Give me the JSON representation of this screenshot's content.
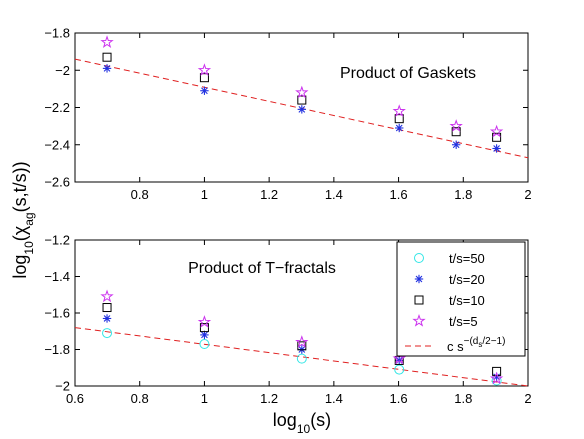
{
  "figure": {
    "ylabel_main": "log",
    "ylabel_sub": "10",
    "ylabel_rest": "(χ",
    "ylabel_chisub": "ag",
    "ylabel_end": "(s,t/s))",
    "xlabel_main": "log",
    "xlabel_sub": "10",
    "xlabel_end": "(s)"
  },
  "colors": {
    "t50": "#33e6e6",
    "t20": "#2030e0",
    "t10": "#000000",
    "t5": "#cc33ee",
    "fit": "#e02020"
  },
  "chart_data": [
    {
      "type": "scatter",
      "title": "Product of Gaskets",
      "xlim": [
        0.6,
        2
      ],
      "ylim": [
        -2.6,
        -1.8
      ],
      "xticks": [
        "",
        "0.8",
        "1",
        "1.2",
        "1.4",
        "1.6",
        "1.8",
        "2"
      ],
      "xtick_values": [
        0.6,
        0.8,
        1.0,
        1.2,
        1.4,
        1.6,
        1.8,
        2.0
      ],
      "yticks": [
        "−2.6",
        "−2.4",
        "−2.2",
        "−2",
        "−1.8"
      ],
      "ytick_values": [
        -2.6,
        -2.4,
        -2.2,
        -2.0,
        -1.8
      ],
      "series": [
        {
          "key": "t20",
          "marker": "star",
          "x": [
            0.699,
            1.0,
            1.301,
            1.602,
            1.778,
            1.903
          ],
          "y": [
            -1.99,
            -2.11,
            -2.21,
            -2.31,
            -2.4,
            -2.42
          ]
        },
        {
          "key": "t10",
          "marker": "square",
          "x": [
            0.699,
            1.0,
            1.301,
            1.602,
            1.778,
            1.903
          ],
          "y": [
            -1.93,
            -2.04,
            -2.16,
            -2.26,
            -2.33,
            -2.36
          ]
        },
        {
          "key": "t5",
          "marker": "pentagram",
          "x": [
            0.699,
            1.0,
            1.301,
            1.602,
            1.778,
            1.903
          ],
          "y": [
            -1.85,
            -2.0,
            -2.12,
            -2.22,
            -2.3,
            -2.33
          ]
        }
      ],
      "fit": {
        "x": [
          0.6,
          2.0
        ],
        "y": [
          -1.94,
          -2.47
        ]
      }
    },
    {
      "type": "scatter",
      "title": "Product of T−fractals",
      "xlim": [
        0.6,
        2
      ],
      "ylim": [
        -2,
        -1.2
      ],
      "xticks": [
        "0.6",
        "0.8",
        "1",
        "1.2",
        "1.4",
        "1.6",
        "1.8",
        "2"
      ],
      "xtick_values": [
        0.6,
        0.8,
        1.0,
        1.2,
        1.4,
        1.6,
        1.8,
        2.0
      ],
      "yticks": [
        "−2",
        "−1.8",
        "−1.6",
        "−1.4",
        "−1.2"
      ],
      "ytick_values": [
        -2.0,
        -1.8,
        -1.6,
        -1.4,
        -1.2
      ],
      "series": [
        {
          "key": "t50",
          "marker": "circle",
          "name": "t/s=50",
          "x": [
            0.699,
            1.0,
            1.301,
            1.602,
            1.903
          ],
          "y": [
            -1.71,
            -1.77,
            -1.85,
            -1.91,
            -1.97
          ]
        },
        {
          "key": "t20",
          "marker": "star",
          "name": "t/s=20",
          "x": [
            0.699,
            1.0,
            1.301,
            1.602,
            1.903
          ],
          "y": [
            -1.63,
            -1.72,
            -1.8,
            -1.86,
            -1.95
          ]
        },
        {
          "key": "t10",
          "marker": "square",
          "name": "t/s=10",
          "x": [
            0.699,
            1.0,
            1.301,
            1.602,
            1.903
          ],
          "y": [
            -1.57,
            -1.68,
            -1.78,
            -1.86,
            -1.92
          ]
        },
        {
          "key": "t5",
          "marker": "pentagram",
          "name": "t/s=5",
          "x": [
            0.699,
            1.0,
            1.301,
            1.602,
            1.903
          ],
          "y": [
            -1.51,
            -1.65,
            -1.76,
            -1.85,
            -1.96
          ]
        }
      ],
      "fit": {
        "x": [
          0.6,
          2.0
        ],
        "y": [
          -1.68,
          -2.0
        ]
      },
      "legend": {
        "placement": "top-right",
        "entries": [
          "t/s=50",
          "t/s=20",
          "t/s=10",
          "t/s=5"
        ],
        "fit_label_base": "c s",
        "fit_label_exp_a": "−(d",
        "fit_label_exp_sub": "s",
        "fit_label_exp_b": "/2−1)"
      }
    }
  ]
}
